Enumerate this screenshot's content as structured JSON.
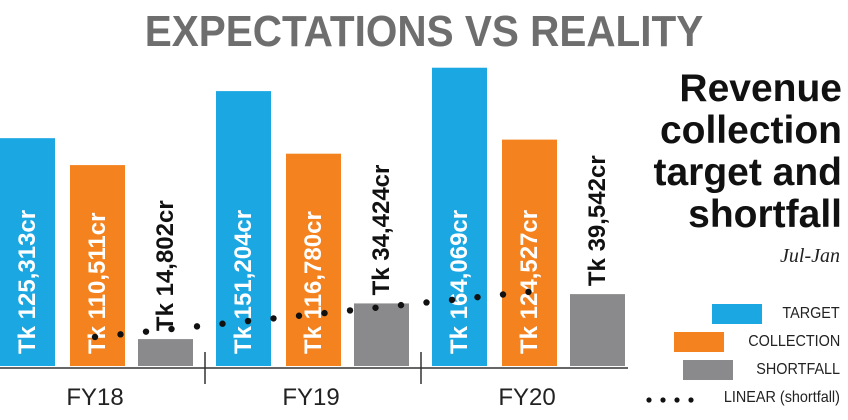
{
  "headline": "EXPECTATIONS VS REALITY",
  "title_lines": [
    "Revenue",
    "collection",
    "target and",
    "shortfall"
  ],
  "subtitle": "Jul-Jan",
  "chart_data": {
    "type": "bar",
    "categories": [
      "FY18",
      "FY19",
      "FY20"
    ],
    "series": [
      {
        "name": "TARGET",
        "values": [
          125313,
          151204,
          164069
        ],
        "labels": [
          "Tk 125,313cr",
          "Tk 151,204cr",
          "Tk 164,069cr"
        ],
        "color": "#1aa7e2"
      },
      {
        "name": "COLLECTION",
        "values": [
          110511,
          116780,
          124527
        ],
        "labels": [
          "Tk 110,511cr",
          "Tk 116,780cr",
          "Tk 124,527cr"
        ],
        "color": "#f4831f"
      },
      {
        "name": "SHORTFALL",
        "values": [
          14802,
          34424,
          39542
        ],
        "labels": [
          "Tk 14,802cr",
          "Tk 34,424cr",
          "Tk 39,542cr"
        ],
        "color": "#8a8a8c"
      }
    ],
    "trendline": {
      "name": "LINEAR (shortfall)",
      "type": "linear",
      "color": "#111111"
    },
    "legend": "bottom-right"
  }
}
